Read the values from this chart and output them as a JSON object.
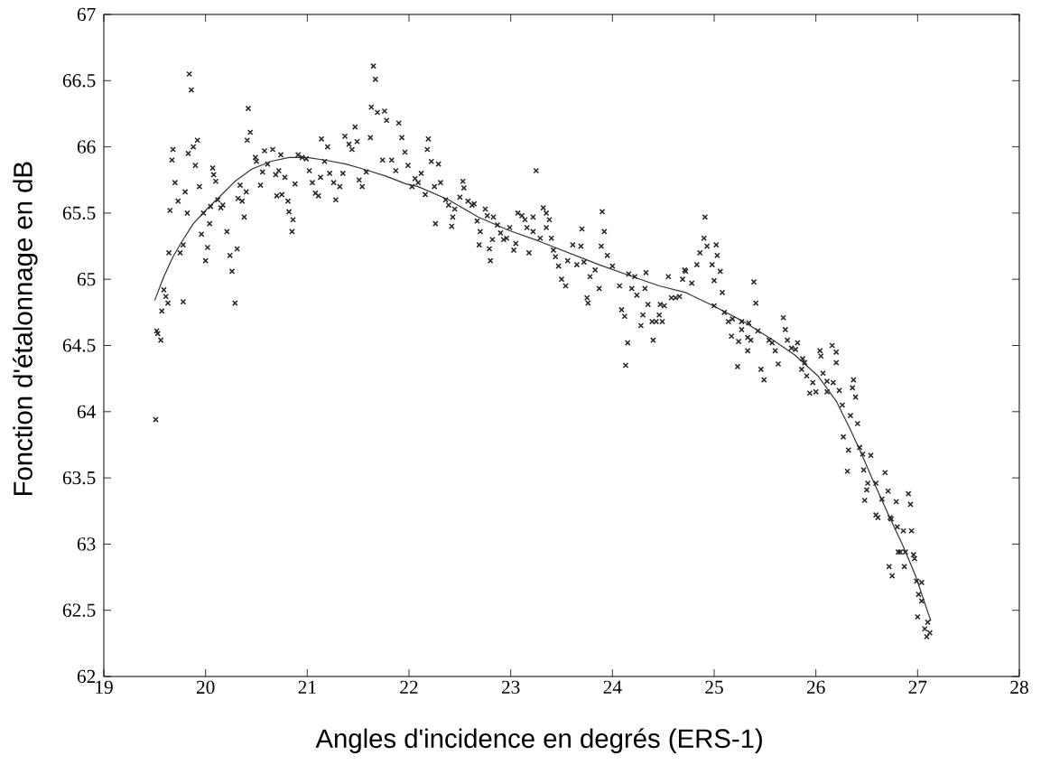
{
  "chart_data": {
    "type": "scatter",
    "xlabel": "Angles d'incidence en degrés (ERS-1)",
    "ylabel": "Fonction d'étalonnage en dB",
    "xlim": [
      19,
      28
    ],
    "ylim": [
      62,
      67
    ],
    "xticks": [
      19,
      20,
      21,
      22,
      23,
      24,
      25,
      26,
      27,
      28
    ],
    "yticks": [
      62,
      62.5,
      63,
      63.5,
      64,
      64.5,
      65,
      65.5,
      66,
      66.5,
      67
    ],
    "series": [
      {
        "marker": "cross",
        "color": "#262626",
        "x": [
          19.51,
          19.52,
          19.53,
          19.56,
          19.57,
          19.59,
          19.61,
          19.63,
          19.64,
          19.65,
          19.67,
          19.68,
          19.7,
          19.73,
          19.75,
          19.78,
          19.78,
          19.8,
          19.82,
          19.83,
          19.84,
          19.86,
          19.88,
          19.9,
          19.92,
          19.94,
          19.96,
          19.98,
          20.0,
          20.02,
          20.04,
          20.05,
          20.07,
          20.08,
          20.1,
          20.12,
          20.15,
          20.17,
          20.21,
          20.24,
          20.26,
          20.29,
          20.31,
          20.34,
          20.32,
          20.36,
          20.38,
          20.4,
          20.41,
          20.42,
          20.44,
          20.49,
          20.5,
          20.54,
          20.56,
          20.58,
          20.61,
          20.66,
          20.69,
          20.7,
          20.72,
          20.74,
          20.75,
          20.78,
          20.81,
          20.82,
          20.86,
          20.85,
          20.88,
          20.91,
          20.95,
          20.99,
          21.02,
          21.05,
          21.08,
          21.11,
          21.13,
          21.14,
          21.17,
          21.2,
          21.22,
          21.26,
          21.28,
          21.32,
          21.35,
          21.37,
          21.41,
          21.44,
          21.47,
          21.49,
          21.51,
          21.54,
          21.58,
          21.62,
          21.63,
          21.65,
          21.67,
          21.69,
          21.74,
          21.76,
          21.78,
          21.83,
          21.87,
          21.9,
          21.93,
          21.96,
          21.99,
          22.06,
          22.09,
          22.03,
          22.12,
          22.16,
          22.19,
          22.18,
          22.22,
          22.29,
          22.25,
          22.31,
          22.26,
          22.36,
          22.39,
          22.42,
          22.43,
          22.45,
          22.5,
          22.53,
          22.54,
          22.58,
          22.62,
          22.64,
          22.67,
          22.7,
          22.69,
          22.75,
          22.77,
          22.79,
          22.8,
          22.83,
          22.82,
          22.87,
          22.9,
          22.93,
          22.96,
          22.99,
          23.03,
          23.05,
          23.07,
          23.11,
          23.14,
          23.16,
          23.18,
          23.22,
          23.22,
          23.25,
          23.29,
          23.32,
          23.35,
          23.38,
          23.35,
          23.4,
          23.42,
          23.44,
          23.47,
          23.5,
          23.54,
          23.56,
          23.61,
          23.65,
          23.69,
          23.7,
          23.72,
          23.75,
          23.76,
          23.78,
          23.83,
          23.87,
          23.9,
          23.92,
          23.89,
          23.95,
          24.0,
          24.07,
          24.09,
          24.12,
          24.15,
          24.13,
          24.16,
          24.19,
          24.22,
          24.24,
          24.28,
          24.3,
          24.33,
          24.32,
          24.35,
          24.39,
          24.4,
          24.43,
          24.46,
          24.49,
          24.47,
          24.51,
          24.55,
          24.58,
          24.62,
          24.66,
          24.69,
          24.71,
          24.91,
          24.9,
          24.93,
          24.86,
          25.02,
          25.03,
          24.98,
          24.83,
          24.72,
          25.06,
          25.0,
          24.78,
          25.08,
          25.39,
          25.41,
          25.0,
          25.1,
          25.14,
          25.18,
          25.27,
          25.34,
          25.27,
          25.17,
          25.24,
          25.33,
          25.36,
          25.33,
          25.23,
          25.43,
          25.54,
          25.57,
          25.6,
          25.46,
          25.63,
          25.49,
          25.68,
          25.7,
          25.72,
          25.76,
          25.82,
          25.8,
          25.87,
          25.89,
          25.86,
          25.91,
          25.97,
          25.94,
          26.0,
          26.04,
          26.05,
          26.16,
          26.2,
          26.2,
          26.07,
          26.11,
          26.17,
          26.11,
          26.23,
          26.37,
          26.36,
          26.39,
          26.26,
          26.34,
          26.41,
          26.27,
          26.32,
          26.43,
          26.46,
          26.54,
          26.31,
          26.47,
          26.68,
          26.51,
          26.59,
          26.5,
          26.71,
          26.48,
          26.65,
          26.79,
          26.91,
          26.93,
          26.59,
          26.61,
          26.73,
          26.74,
          26.8,
          26.86,
          26.94,
          26.81,
          26.83,
          26.88,
          26.96,
          26.97,
          26.72,
          26.75,
          26.87,
          26.99,
          27.04,
          27.01,
          27.04,
          27.0,
          27.1,
          27.07,
          27.12,
          27.09
        ],
        "values": [
          63.94,
          64.61,
          64.59,
          64.54,
          64.76,
          64.92,
          64.87,
          64.82,
          65.2,
          65.52,
          65.9,
          65.98,
          65.73,
          65.59,
          65.2,
          64.83,
          65.26,
          65.66,
          65.5,
          65.95,
          66.55,
          66.43,
          66.0,
          65.86,
          66.05,
          65.7,
          65.34,
          65.5,
          65.14,
          65.24,
          65.42,
          65.55,
          65.84,
          65.79,
          65.74,
          65.6,
          65.54,
          65.56,
          65.36,
          65.18,
          65.06,
          64.82,
          65.23,
          65.71,
          65.61,
          65.59,
          65.47,
          65.66,
          66.05,
          66.29,
          66.11,
          65.92,
          65.89,
          65.71,
          65.81,
          65.97,
          65.87,
          65.98,
          65.79,
          65.63,
          65.82,
          65.94,
          65.64,
          65.77,
          65.59,
          65.51,
          65.45,
          65.36,
          65.72,
          65.94,
          65.92,
          65.91,
          65.82,
          65.73,
          65.65,
          65.63,
          65.77,
          66.06,
          65.89,
          66.0,
          65.8,
          65.73,
          65.6,
          65.7,
          65.8,
          66.08,
          66.02,
          65.98,
          66.15,
          66.04,
          65.75,
          65.7,
          65.81,
          66.07,
          66.3,
          66.61,
          66.51,
          66.26,
          65.9,
          66.27,
          66.2,
          65.9,
          65.82,
          66.18,
          66.07,
          65.96,
          65.86,
          65.76,
          65.73,
          65.7,
          65.8,
          65.64,
          66.06,
          65.98,
          65.89,
          65.87,
          65.7,
          65.73,
          65.42,
          65.6,
          65.56,
          65.4,
          65.47,
          65.53,
          65.62,
          65.74,
          65.69,
          65.59,
          65.56,
          65.57,
          65.44,
          65.36,
          65.26,
          65.53,
          65.48,
          65.23,
          65.14,
          65.47,
          65.3,
          65.41,
          65.35,
          65.3,
          65.31,
          65.39,
          65.22,
          65.27,
          65.5,
          65.48,
          65.45,
          65.39,
          65.2,
          65.47,
          65.36,
          65.82,
          65.31,
          65.54,
          65.5,
          65.45,
          65.39,
          65.31,
          65.22,
          65.17,
          65.1,
          65.0,
          64.95,
          65.14,
          65.26,
          65.11,
          65.25,
          65.38,
          65.13,
          64.86,
          64.82,
          65.02,
          65.07,
          64.93,
          65.51,
          65.36,
          65.25,
          65.18,
          65.1,
          64.95,
          64.77,
          64.72,
          64.52,
          64.35,
          65.04,
          64.93,
          65.02,
          64.88,
          64.65,
          64.73,
          65.05,
          64.93,
          64.81,
          64.68,
          64.54,
          64.68,
          64.73,
          64.68,
          64.81,
          64.8,
          65.02,
          64.86,
          64.86,
          64.87,
          65.0,
          65.07,
          65.47,
          65.31,
          65.25,
          65.2,
          65.26,
          65.18,
          65.11,
          65.11,
          65.06,
          65.06,
          64.99,
          64.97,
          64.9,
          64.98,
          64.82,
          64.8,
          64.75,
          64.68,
          64.7,
          64.68,
          64.67,
          64.62,
          64.57,
          64.53,
          64.56,
          64.54,
          64.46,
          64.34,
          64.61,
          64.54,
          64.52,
          64.46,
          64.32,
          64.36,
          64.24,
          64.71,
          64.62,
          64.54,
          64.48,
          64.52,
          64.47,
          64.4,
          64.37,
          64.32,
          64.27,
          64.22,
          64.14,
          64.15,
          64.46,
          64.42,
          64.5,
          64.45,
          64.37,
          64.29,
          64.23,
          64.22,
          64.15,
          64.16,
          64.24,
          64.18,
          64.11,
          64.05,
          63.97,
          63.91,
          63.81,
          63.71,
          63.73,
          63.68,
          63.67,
          63.55,
          63.56,
          63.54,
          63.46,
          63.46,
          63.41,
          63.4,
          63.33,
          63.34,
          63.32,
          63.38,
          63.3,
          63.22,
          63.2,
          63.2,
          63.19,
          63.13,
          63.1,
          63.1,
          62.94,
          62.94,
          62.94,
          62.92,
          62.89,
          62.83,
          62.76,
          62.83,
          62.72,
          62.71,
          62.62,
          62.57,
          62.45,
          62.41,
          62.36,
          62.33,
          62.3
        ]
      },
      {
        "type": "line",
        "marker": "none",
        "line_style": "solid",
        "color": "#333333",
        "x": [
          19.5,
          19.59,
          19.68,
          19.78,
          19.88,
          20.0,
          20.12,
          20.29,
          20.45,
          20.64,
          20.82,
          21.0,
          21.17,
          21.38,
          21.56,
          21.77,
          21.97,
          22.09,
          22.39,
          22.68,
          22.98,
          23.27,
          23.57,
          23.87,
          24.16,
          24.46,
          24.72,
          24.99,
          25.29,
          25.58,
          25.79,
          26.02,
          26.2,
          26.33,
          26.45,
          26.55,
          26.72,
          26.86,
          26.98,
          27.13
        ],
        "values": [
          64.84,
          65.02,
          65.17,
          65.3,
          65.42,
          65.52,
          65.61,
          65.74,
          65.83,
          65.89,
          65.92,
          65.92,
          65.9,
          65.87,
          65.83,
          65.78,
          65.72,
          65.7,
          65.6,
          65.47,
          65.37,
          65.29,
          65.2,
          65.11,
          65.03,
          64.95,
          64.9,
          64.8,
          64.68,
          64.54,
          64.43,
          64.27,
          64.08,
          63.88,
          63.68,
          63.5,
          63.21,
          62.98,
          62.76,
          62.42
        ]
      }
    ]
  }
}
